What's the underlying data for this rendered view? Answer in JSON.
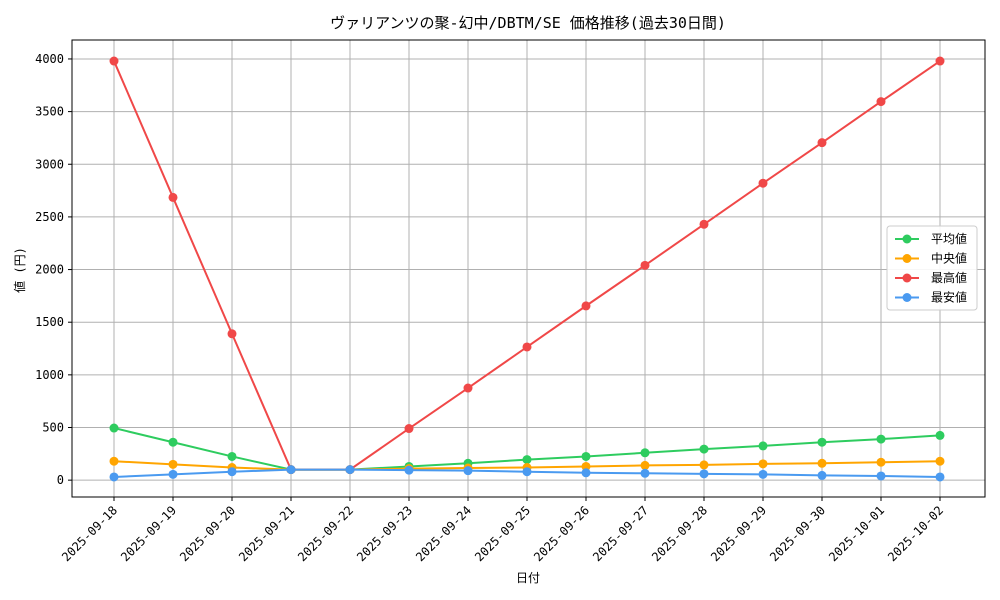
{
  "chart_data": {
    "type": "line",
    "title": "ヴァリアンツの聚-幻中/DBTM/SE 価格推移(過去30日間)",
    "xlabel": "日付",
    "ylabel": "値 (円)",
    "ylim": [
      -160,
      4180
    ],
    "yticks": [
      0,
      500,
      1000,
      1500,
      2000,
      2500,
      3000,
      3500,
      4000
    ],
    "grid": true,
    "legend_position": "center-right",
    "categories": [
      "2025-09-18",
      "2025-09-19",
      "2025-09-20",
      "2025-09-21",
      "2025-09-22",
      "2025-09-23",
      "2025-09-24",
      "2025-09-25",
      "2025-09-26",
      "2025-09-27",
      "2025-09-28",
      "2025-09-29",
      "2025-09-30",
      "2025-10-01",
      "2025-10-02"
    ],
    "series": [
      {
        "name": "平均値",
        "color": "#2ecc5f",
        "values": [
          495,
          360,
          225,
          100,
          100,
          130,
          160,
          195,
          225,
          260,
          295,
          325,
          360,
          390,
          425
        ]
      },
      {
        "name": "中央値",
        "color": "#ffa500",
        "values": [
          180,
          150,
          120,
          100,
          100,
          110,
          115,
          120,
          130,
          140,
          145,
          155,
          160,
          170,
          180
        ]
      },
      {
        "name": "最高値",
        "color": "#f04848",
        "values": [
          3980,
          2685,
          1390,
          100,
          100,
          490,
          875,
          1265,
          1655,
          2040,
          2430,
          2820,
          3205,
          3595,
          3980
        ]
      },
      {
        "name": "最安値",
        "color": "#4a9af0",
        "values": [
          30,
          55,
          80,
          100,
          100,
          95,
          90,
          80,
          70,
          65,
          60,
          55,
          45,
          40,
          30
        ]
      }
    ]
  }
}
